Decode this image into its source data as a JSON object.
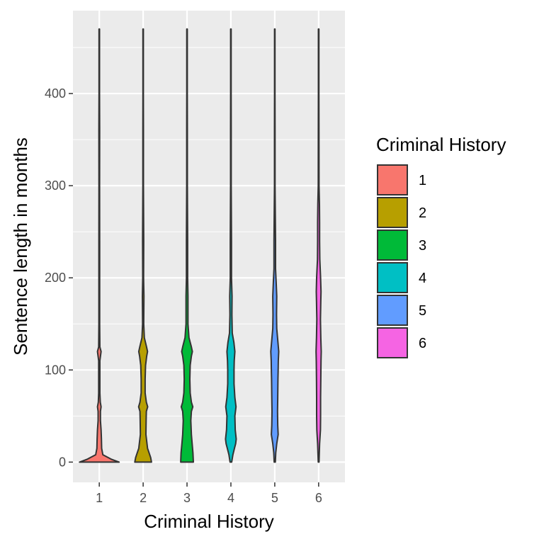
{
  "chart_data": {
    "type": "violin",
    "xlabel": "Criminal History",
    "ylabel": "Sentence length in months",
    "categories": [
      "1",
      "2",
      "3",
      "4",
      "5",
      "6"
    ],
    "ylim": [
      -22,
      490
    ],
    "yticks": [
      0,
      100,
      200,
      300,
      400
    ],
    "grid": true,
    "legend": {
      "title": "Criminal History",
      "position": "right",
      "entries": [
        "1",
        "2",
        "3",
        "4",
        "5",
        "6"
      ]
    },
    "colors": [
      "#F8766D",
      "#B79F00",
      "#00BA38",
      "#00BFC4",
      "#619CFF",
      "#F564E3"
    ],
    "series": [
      {
        "category": "1",
        "range": [
          0,
          470
        ],
        "density": [
          [
            0,
            1.0
          ],
          [
            3,
            0.62
          ],
          [
            8,
            0.18
          ],
          [
            15,
            0.12
          ],
          [
            25,
            0.11
          ],
          [
            35,
            0.09
          ],
          [
            45,
            0.06
          ],
          [
            55,
            0.06
          ],
          [
            60,
            0.09
          ],
          [
            65,
            0.05
          ],
          [
            75,
            0.03
          ],
          [
            90,
            0.03
          ],
          [
            110,
            0.03
          ],
          [
            120,
            0.09
          ],
          [
            125,
            0.03
          ],
          [
            150,
            0.02
          ],
          [
            180,
            0.02
          ],
          [
            200,
            0.02
          ],
          [
            240,
            0.02
          ],
          [
            300,
            0.015
          ],
          [
            360,
            0.02
          ],
          [
            400,
            0.012
          ],
          [
            470,
            0.012
          ]
        ]
      },
      {
        "category": "2",
        "range": [
          0,
          470
        ],
        "density": [
          [
            0,
            0.42
          ],
          [
            5,
            0.38
          ],
          [
            15,
            0.22
          ],
          [
            30,
            0.14
          ],
          [
            45,
            0.15
          ],
          [
            55,
            0.16
          ],
          [
            60,
            0.23
          ],
          [
            65,
            0.16
          ],
          [
            75,
            0.1
          ],
          [
            90,
            0.1
          ],
          [
            105,
            0.12
          ],
          [
            115,
            0.18
          ],
          [
            120,
            0.22
          ],
          [
            125,
            0.17
          ],
          [
            135,
            0.06
          ],
          [
            150,
            0.03
          ],
          [
            180,
            0.04
          ],
          [
            200,
            0.02
          ],
          [
            240,
            0.03
          ],
          [
            300,
            0.015
          ],
          [
            360,
            0.015
          ],
          [
            400,
            0.012
          ],
          [
            470,
            0.012
          ]
        ]
      },
      {
        "category": "3",
        "range": [
          0,
          470
        ],
        "density": [
          [
            0,
            0.32
          ],
          [
            10,
            0.3
          ],
          [
            20,
            0.26
          ],
          [
            30,
            0.22
          ],
          [
            45,
            0.19
          ],
          [
            55,
            0.22
          ],
          [
            60,
            0.29
          ],
          [
            65,
            0.22
          ],
          [
            75,
            0.16
          ],
          [
            90,
            0.14
          ],
          [
            105,
            0.16
          ],
          [
            115,
            0.22
          ],
          [
            120,
            0.27
          ],
          [
            125,
            0.22
          ],
          [
            135,
            0.1
          ],
          [
            150,
            0.05
          ],
          [
            180,
            0.05
          ],
          [
            200,
            0.03
          ],
          [
            240,
            0.03
          ],
          [
            300,
            0.015
          ],
          [
            360,
            0.015
          ],
          [
            400,
            0.012
          ],
          [
            470,
            0.012
          ]
        ]
      },
      {
        "category": "4",
        "range": [
          0,
          470
        ],
        "density": [
          [
            0,
            0.04
          ],
          [
            8,
            0.1
          ],
          [
            15,
            0.18
          ],
          [
            20,
            0.24
          ],
          [
            25,
            0.27
          ],
          [
            35,
            0.22
          ],
          [
            50,
            0.2
          ],
          [
            60,
            0.26
          ],
          [
            70,
            0.2
          ],
          [
            85,
            0.16
          ],
          [
            100,
            0.16
          ],
          [
            110,
            0.17
          ],
          [
            120,
            0.2
          ],
          [
            130,
            0.15
          ],
          [
            140,
            0.07
          ],
          [
            160,
            0.05
          ],
          [
            180,
            0.06
          ],
          [
            200,
            0.03
          ],
          [
            240,
            0.03
          ],
          [
            300,
            0.015
          ],
          [
            360,
            0.015
          ],
          [
            400,
            0.012
          ],
          [
            470,
            0.012
          ]
        ]
      },
      {
        "category": "5",
        "range": [
          0,
          470
        ],
        "density": [
          [
            0,
            0.03
          ],
          [
            10,
            0.05
          ],
          [
            20,
            0.1
          ],
          [
            30,
            0.17
          ],
          [
            40,
            0.15
          ],
          [
            55,
            0.14
          ],
          [
            70,
            0.15
          ],
          [
            90,
            0.16
          ],
          [
            100,
            0.17
          ],
          [
            110,
            0.18
          ],
          [
            120,
            0.2
          ],
          [
            130,
            0.16
          ],
          [
            145,
            0.1
          ],
          [
            160,
            0.09
          ],
          [
            180,
            0.1
          ],
          [
            195,
            0.07
          ],
          [
            210,
            0.04
          ],
          [
            240,
            0.04
          ],
          [
            300,
            0.015
          ],
          [
            360,
            0.015
          ],
          [
            400,
            0.012
          ],
          [
            470,
            0.012
          ]
        ]
      },
      {
        "category": "6",
        "range": [
          0,
          470
        ],
        "density": [
          [
            0,
            0.02
          ],
          [
            20,
            0.05
          ],
          [
            35,
            0.09
          ],
          [
            50,
            0.1
          ],
          [
            70,
            0.1
          ],
          [
            90,
            0.11
          ],
          [
            110,
            0.12
          ],
          [
            120,
            0.13
          ],
          [
            135,
            0.11
          ],
          [
            155,
            0.09
          ],
          [
            175,
            0.11
          ],
          [
            185,
            0.12
          ],
          [
            200,
            0.1
          ],
          [
            220,
            0.06
          ],
          [
            240,
            0.05
          ],
          [
            260,
            0.05
          ],
          [
            280,
            0.04
          ],
          [
            300,
            0.02
          ],
          [
            360,
            0.015
          ],
          [
            400,
            0.012
          ],
          [
            470,
            0.012
          ]
        ]
      }
    ]
  }
}
